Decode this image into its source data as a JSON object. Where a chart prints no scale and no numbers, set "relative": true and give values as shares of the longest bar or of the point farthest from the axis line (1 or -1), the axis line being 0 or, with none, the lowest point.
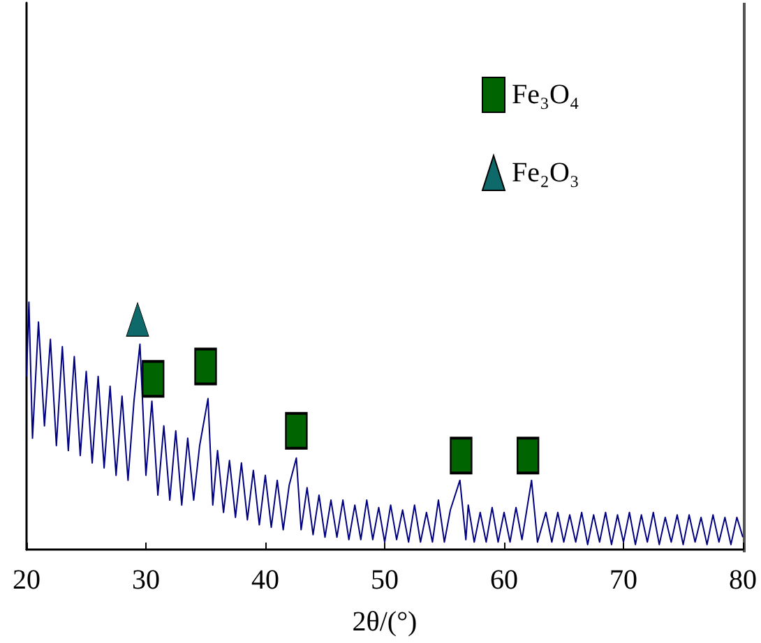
{
  "chart_data": {
    "type": "line",
    "xlabel": "2θ/(°)",
    "xlim": [
      20,
      80
    ],
    "xticks": [
      20,
      30,
      40,
      50,
      60,
      70,
      80
    ],
    "relative": true,
    "grid": false,
    "legend": "top right",
    "tick_labels": "x",
    "series": [
      {
        "color": "#000080",
        "marker": "none",
        "x": [
          20,
          20.2,
          20.5,
          21,
          21.5,
          22,
          22.5,
          23,
          23.5,
          24,
          24.5,
          25,
          25.5,
          26,
          26.5,
          27,
          27.5,
          28,
          28.5,
          29,
          29.5,
          30,
          30.5,
          31,
          31.5,
          32,
          32.5,
          33,
          33.5,
          34,
          34.5,
          35.2,
          35.6,
          36,
          36.5,
          37,
          37.5,
          38,
          38.5,
          39,
          39.5,
          40,
          40.5,
          41,
          41.5,
          42,
          42.6,
          43,
          43.5,
          44,
          44.5,
          45,
          45.5,
          46,
          46.5,
          47,
          47.5,
          48,
          48.5,
          49,
          49.5,
          50,
          50.5,
          51,
          51.5,
          52,
          52.5,
          53,
          53.5,
          54,
          54.5,
          55,
          55.5,
          56.3,
          56.8,
          57,
          57.5,
          58,
          58.5,
          59,
          59.5,
          60,
          60.5,
          61,
          61.5,
          62.3,
          62.8,
          63.5,
          64,
          64.5,
          65,
          65.5,
          66,
          66.5,
          67,
          67.5,
          68,
          68.5,
          69,
          69.5,
          70,
          70.5,
          71,
          71.5,
          72,
          72.5,
          73,
          73.5,
          74,
          74.5,
          75,
          75.5,
          76,
          76.5,
          77,
          77.5,
          78,
          78.5,
          79,
          79.5,
          80
        ],
        "values": [
          0.7,
          1.0,
          0.45,
          0.92,
          0.5,
          0.85,
          0.42,
          0.82,
          0.4,
          0.78,
          0.38,
          0.72,
          0.35,
          0.7,
          0.33,
          0.66,
          0.3,
          0.62,
          0.28,
          0.6,
          0.83,
          0.3,
          0.6,
          0.22,
          0.5,
          0.2,
          0.48,
          0.18,
          0.45,
          0.2,
          0.42,
          0.61,
          0.18,
          0.4,
          0.15,
          0.36,
          0.13,
          0.35,
          0.12,
          0.32,
          0.1,
          0.3,
          0.09,
          0.28,
          0.08,
          0.26,
          0.37,
          0.08,
          0.25,
          0.06,
          0.22,
          0.05,
          0.2,
          0.05,
          0.2,
          0.04,
          0.18,
          0.04,
          0.2,
          0.04,
          0.17,
          0.03,
          0.18,
          0.04,
          0.16,
          0.03,
          0.18,
          0.03,
          0.15,
          0.03,
          0.2,
          0.03,
          0.16,
          0.28,
          0.04,
          0.18,
          0.03,
          0.15,
          0.03,
          0.17,
          0.03,
          0.15,
          0.03,
          0.17,
          0.04,
          0.28,
          0.03,
          0.15,
          0.03,
          0.15,
          0.03,
          0.14,
          0.03,
          0.15,
          0.02,
          0.14,
          0.03,
          0.15,
          0.02,
          0.14,
          0.03,
          0.15,
          0.02,
          0.14,
          0.03,
          0.15,
          0.02,
          0.13,
          0.03,
          0.14,
          0.02,
          0.14,
          0.03,
          0.13,
          0.02,
          0.14,
          0.03,
          0.13,
          0.02,
          0.13,
          0.05
        ]
      },
      {
        "type": "scatter",
        "name": "Fe₃O₄",
        "color": "#006400",
        "marker": "square",
        "x": [
          30.6,
          35.0,
          42.6,
          56.4,
          62.0
        ],
        "values": [
          0.69,
          0.74,
          0.48,
          0.38,
          0.38
        ]
      },
      {
        "type": "scatter",
        "name": "Fe₂O₃",
        "color": "#0e6a6a",
        "marker": "triangle",
        "x": [
          29.3
        ],
        "values": [
          0.93
        ]
      }
    ]
  }
}
